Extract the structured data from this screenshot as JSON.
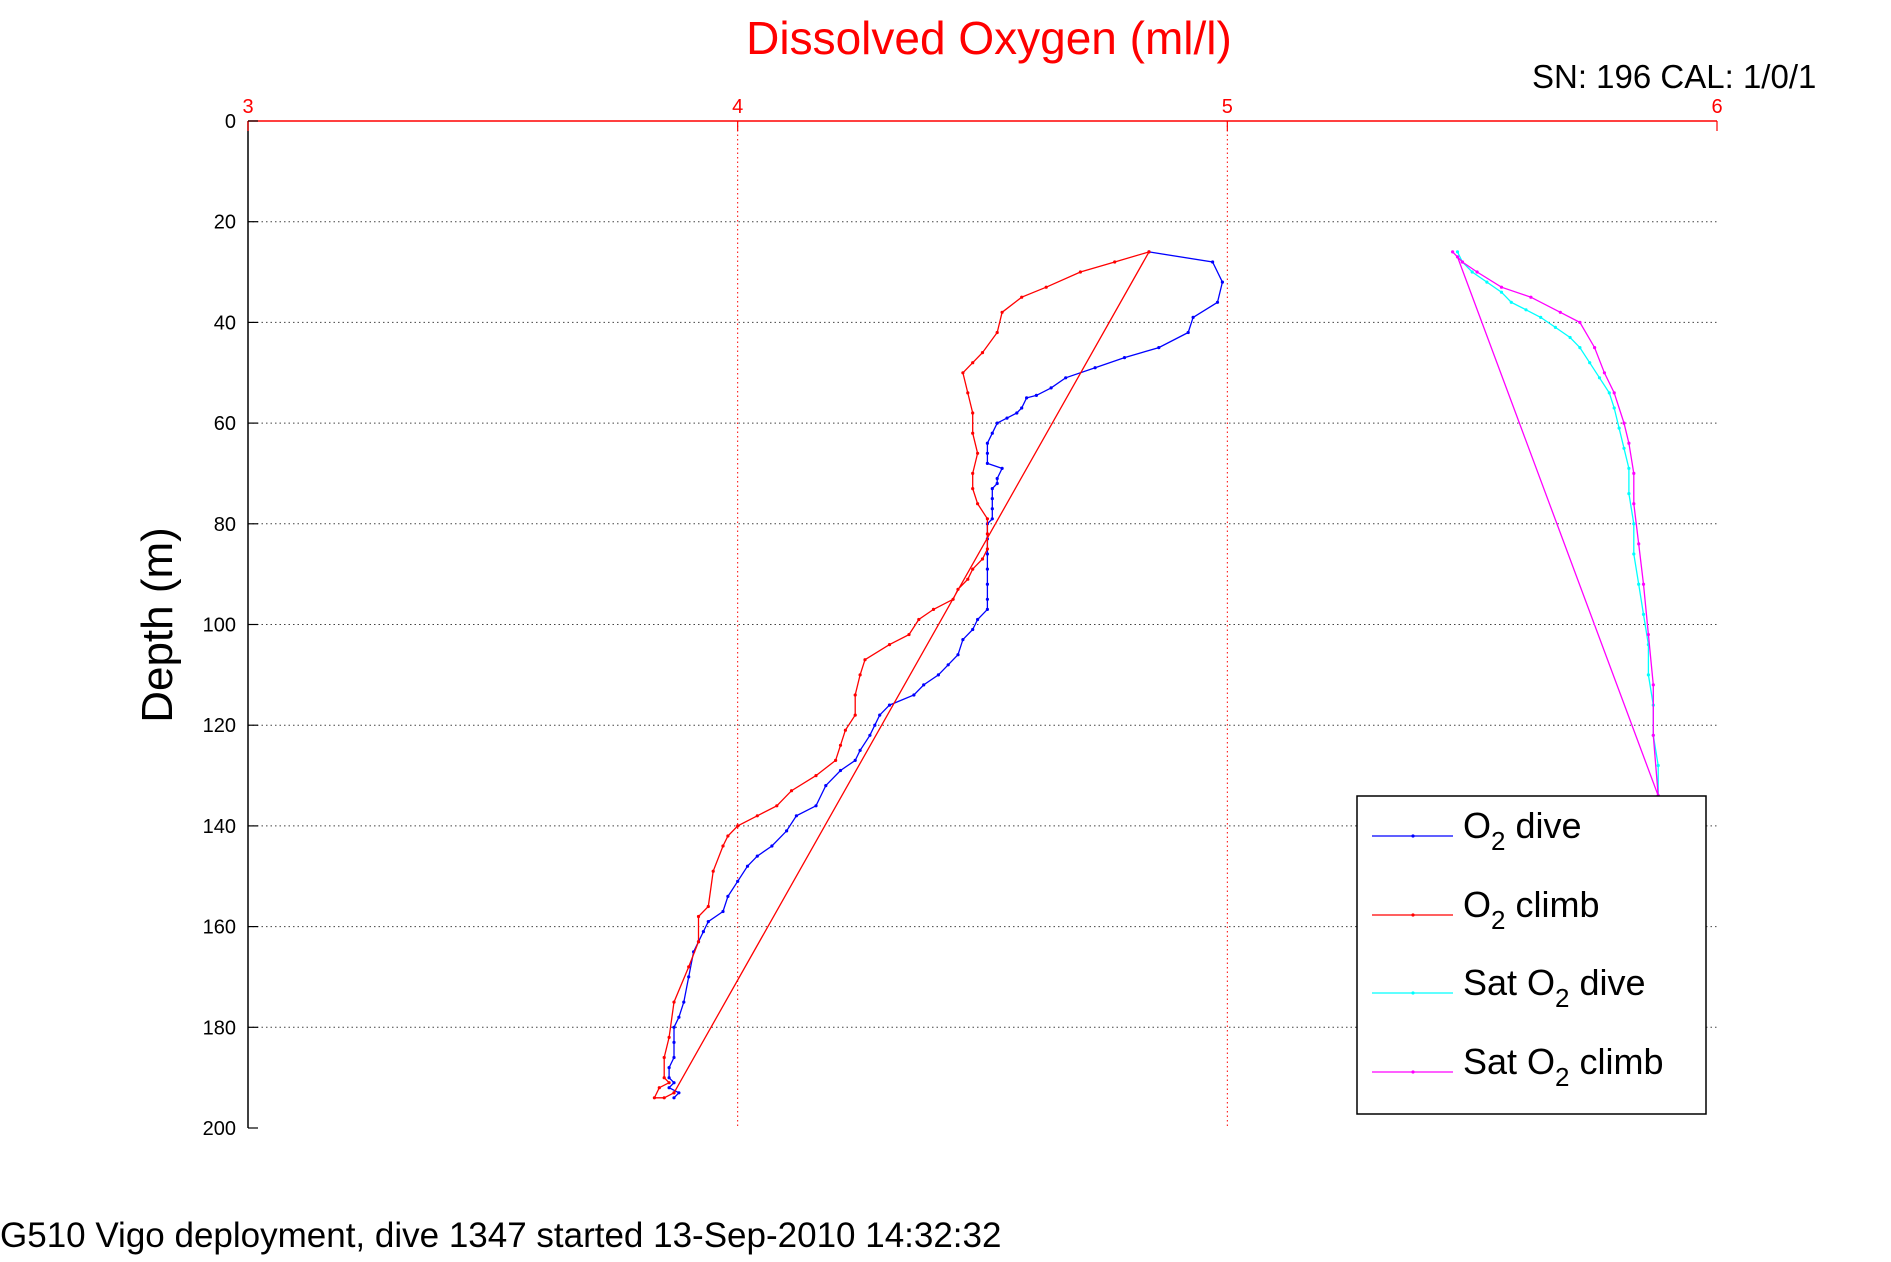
{
  "serial_label": "SN: 196  CAL: 1/0/1",
  "caption": "G510 Vigo deployment, dive 1347 started 13-Sep-2010 14:32:32",
  "chart_data": {
    "type": "line",
    "title": "Dissolved Oxygen (ml/l)",
    "xlabel": "Dissolved Oxygen (ml/l)",
    "ylabel": "Depth (m)",
    "xlim": [
      3,
      6
    ],
    "ylim": [
      0,
      200
    ],
    "y_reversed": true,
    "x_axis_position": "top",
    "x_ticks": [
      3,
      4,
      5,
      6
    ],
    "y_ticks": [
      0,
      20,
      40,
      60,
      80,
      100,
      120,
      140,
      160,
      180,
      200
    ],
    "grid": true,
    "legend_position": "bottom-right",
    "colors": {
      "x_axis": "#ff0000",
      "title": "#ff0000",
      "o2_dive": "#0000ff",
      "o2_climb": "#ff0000",
      "sat_o2_dive": "#00ffff",
      "sat_o2_climb": "#ff00ff"
    },
    "series": [
      {
        "key": "o2_dive",
        "name_main": "O",
        "name_sub": "2",
        "name_rest": " dive",
        "color": "#0000ff",
        "points": [
          [
            4.84,
            26
          ],
          [
            4.97,
            28
          ],
          [
            4.99,
            32
          ],
          [
            4.98,
            36
          ],
          [
            4.93,
            39
          ],
          [
            4.92,
            42
          ],
          [
            4.86,
            45
          ],
          [
            4.79,
            47
          ],
          [
            4.73,
            49
          ],
          [
            4.67,
            51
          ],
          [
            4.64,
            53
          ],
          [
            4.61,
            54.5
          ],
          [
            4.59,
            55
          ],
          [
            4.58,
            57
          ],
          [
            4.57,
            58
          ],
          [
            4.55,
            59
          ],
          [
            4.53,
            60
          ],
          [
            4.52,
            62
          ],
          [
            4.51,
            64
          ],
          [
            4.51,
            66
          ],
          [
            4.51,
            68
          ],
          [
            4.54,
            69
          ],
          [
            4.53,
            71
          ],
          [
            4.53,
            72
          ],
          [
            4.52,
            73
          ],
          [
            4.52,
            75
          ],
          [
            4.52,
            77
          ],
          [
            4.52,
            79
          ],
          [
            4.51,
            80
          ],
          [
            4.51,
            83
          ],
          [
            4.51,
            86
          ],
          [
            4.51,
            89
          ],
          [
            4.51,
            92
          ],
          [
            4.51,
            95
          ],
          [
            4.51,
            97
          ],
          [
            4.49,
            99
          ],
          [
            4.48,
            101
          ],
          [
            4.46,
            103
          ],
          [
            4.45,
            106
          ],
          [
            4.43,
            108
          ],
          [
            4.41,
            110
          ],
          [
            4.38,
            112
          ],
          [
            4.36,
            114
          ],
          [
            4.31,
            116
          ],
          [
            4.29,
            118
          ],
          [
            4.28,
            120
          ],
          [
            4.27,
            122
          ],
          [
            4.25,
            125
          ],
          [
            4.24,
            127
          ],
          [
            4.21,
            129
          ],
          [
            4.18,
            132
          ],
          [
            4.16,
            136
          ],
          [
            4.12,
            138
          ],
          [
            4.1,
            141
          ],
          [
            4.07,
            144
          ],
          [
            4.04,
            146
          ],
          [
            4.02,
            148
          ],
          [
            4.0,
            151
          ],
          [
            3.98,
            154
          ],
          [
            3.97,
            157
          ],
          [
            3.94,
            159
          ],
          [
            3.93,
            161
          ],
          [
            3.92,
            163
          ],
          [
            3.91,
            165
          ],
          [
            3.9,
            170
          ],
          [
            3.89,
            175
          ],
          [
            3.88,
            178
          ],
          [
            3.87,
            180
          ],
          [
            3.87,
            183
          ],
          [
            3.87,
            186
          ],
          [
            3.86,
            188
          ],
          [
            3.86,
            190
          ],
          [
            3.87,
            191
          ],
          [
            3.86,
            192
          ],
          [
            3.88,
            193
          ],
          [
            3.87,
            194
          ]
        ]
      },
      {
        "key": "o2_climb",
        "name_main": "O",
        "name_sub": "2",
        "name_rest": " climb",
        "color": "#ff0000",
        "points": [
          [
            3.87,
            193
          ],
          [
            3.85,
            194
          ],
          [
            3.83,
            194
          ],
          [
            3.84,
            192
          ],
          [
            3.86,
            191
          ],
          [
            3.85,
            190
          ],
          [
            3.85,
            186
          ],
          [
            3.86,
            182
          ],
          [
            3.87,
            175
          ],
          [
            3.9,
            168
          ],
          [
            3.92,
            163
          ],
          [
            3.92,
            158
          ],
          [
            3.94,
            156
          ],
          [
            3.95,
            149
          ],
          [
            3.97,
            144
          ],
          [
            3.98,
            142
          ],
          [
            4.0,
            140
          ],
          [
            4.04,
            138
          ],
          [
            4.08,
            136
          ],
          [
            4.11,
            133
          ],
          [
            4.16,
            130
          ],
          [
            4.2,
            127
          ],
          [
            4.21,
            124
          ],
          [
            4.22,
            121
          ],
          [
            4.24,
            118
          ],
          [
            4.24,
            114
          ],
          [
            4.25,
            110
          ],
          [
            4.26,
            107
          ],
          [
            4.31,
            104
          ],
          [
            4.35,
            102
          ],
          [
            4.37,
            99
          ],
          [
            4.4,
            97
          ],
          [
            4.44,
            95
          ],
          [
            4.45,
            93
          ],
          [
            4.47,
            91
          ],
          [
            4.48,
            89
          ],
          [
            4.5,
            87
          ],
          [
            4.51,
            85
          ],
          [
            4.51,
            82
          ],
          [
            4.51,
            79
          ],
          [
            4.49,
            76
          ],
          [
            4.48,
            73
          ],
          [
            4.48,
            70
          ],
          [
            4.49,
            66
          ],
          [
            4.48,
            62
          ],
          [
            4.48,
            58
          ],
          [
            4.47,
            54
          ],
          [
            4.46,
            50
          ],
          [
            4.48,
            48
          ],
          [
            4.5,
            46
          ],
          [
            4.53,
            42
          ],
          [
            4.54,
            38
          ],
          [
            4.58,
            35
          ],
          [
            4.63,
            33
          ],
          [
            4.7,
            30
          ],
          [
            4.77,
            28
          ],
          [
            4.84,
            26
          ],
          [
            3.87,
            193
          ]
        ]
      },
      {
        "key": "sat_o2_dive",
        "name_main": "Sat O",
        "name_sub": "2",
        "name_rest": " dive",
        "color": "#00ffff",
        "points": [
          [
            5.47,
            26
          ],
          [
            5.48,
            28
          ],
          [
            5.5,
            30
          ],
          [
            5.53,
            32
          ],
          [
            5.56,
            34
          ],
          [
            5.58,
            36
          ],
          [
            5.61,
            37.5
          ],
          [
            5.64,
            39
          ],
          [
            5.67,
            41
          ],
          [
            5.7,
            43
          ],
          [
            5.72,
            45
          ],
          [
            5.74,
            48
          ],
          [
            5.76,
            51
          ],
          [
            5.78,
            54
          ],
          [
            5.79,
            57
          ],
          [
            5.8,
            61
          ],
          [
            5.81,
            65
          ],
          [
            5.82,
            69
          ],
          [
            5.82,
            74
          ],
          [
            5.83,
            80
          ],
          [
            5.83,
            86
          ],
          [
            5.84,
            92
          ],
          [
            5.85,
            98
          ],
          [
            5.86,
            104
          ],
          [
            5.86,
            110
          ],
          [
            5.87,
            116
          ],
          [
            5.87,
            122
          ],
          [
            5.88,
            128
          ],
          [
            5.88,
            134
          ]
        ]
      },
      {
        "key": "sat_o2_climb",
        "name_main": "Sat O",
        "name_sub": "2",
        "name_rest": " climb",
        "color": "#ff00ff",
        "points": [
          [
            5.88,
            134
          ],
          [
            5.87,
            122
          ],
          [
            5.87,
            112
          ],
          [
            5.86,
            102
          ],
          [
            5.85,
            92
          ],
          [
            5.84,
            84
          ],
          [
            5.83,
            76
          ],
          [
            5.83,
            70
          ],
          [
            5.82,
            64
          ],
          [
            5.81,
            60
          ],
          [
            5.79,
            54
          ],
          [
            5.77,
            50
          ],
          [
            5.75,
            45
          ],
          [
            5.72,
            40
          ],
          [
            5.68,
            38
          ],
          [
            5.62,
            35
          ],
          [
            5.56,
            33
          ],
          [
            5.51,
            30
          ],
          [
            5.48,
            28
          ],
          [
            5.46,
            26
          ],
          [
            5.47,
            27
          ],
          [
            5.88,
            134
          ]
        ]
      }
    ]
  }
}
